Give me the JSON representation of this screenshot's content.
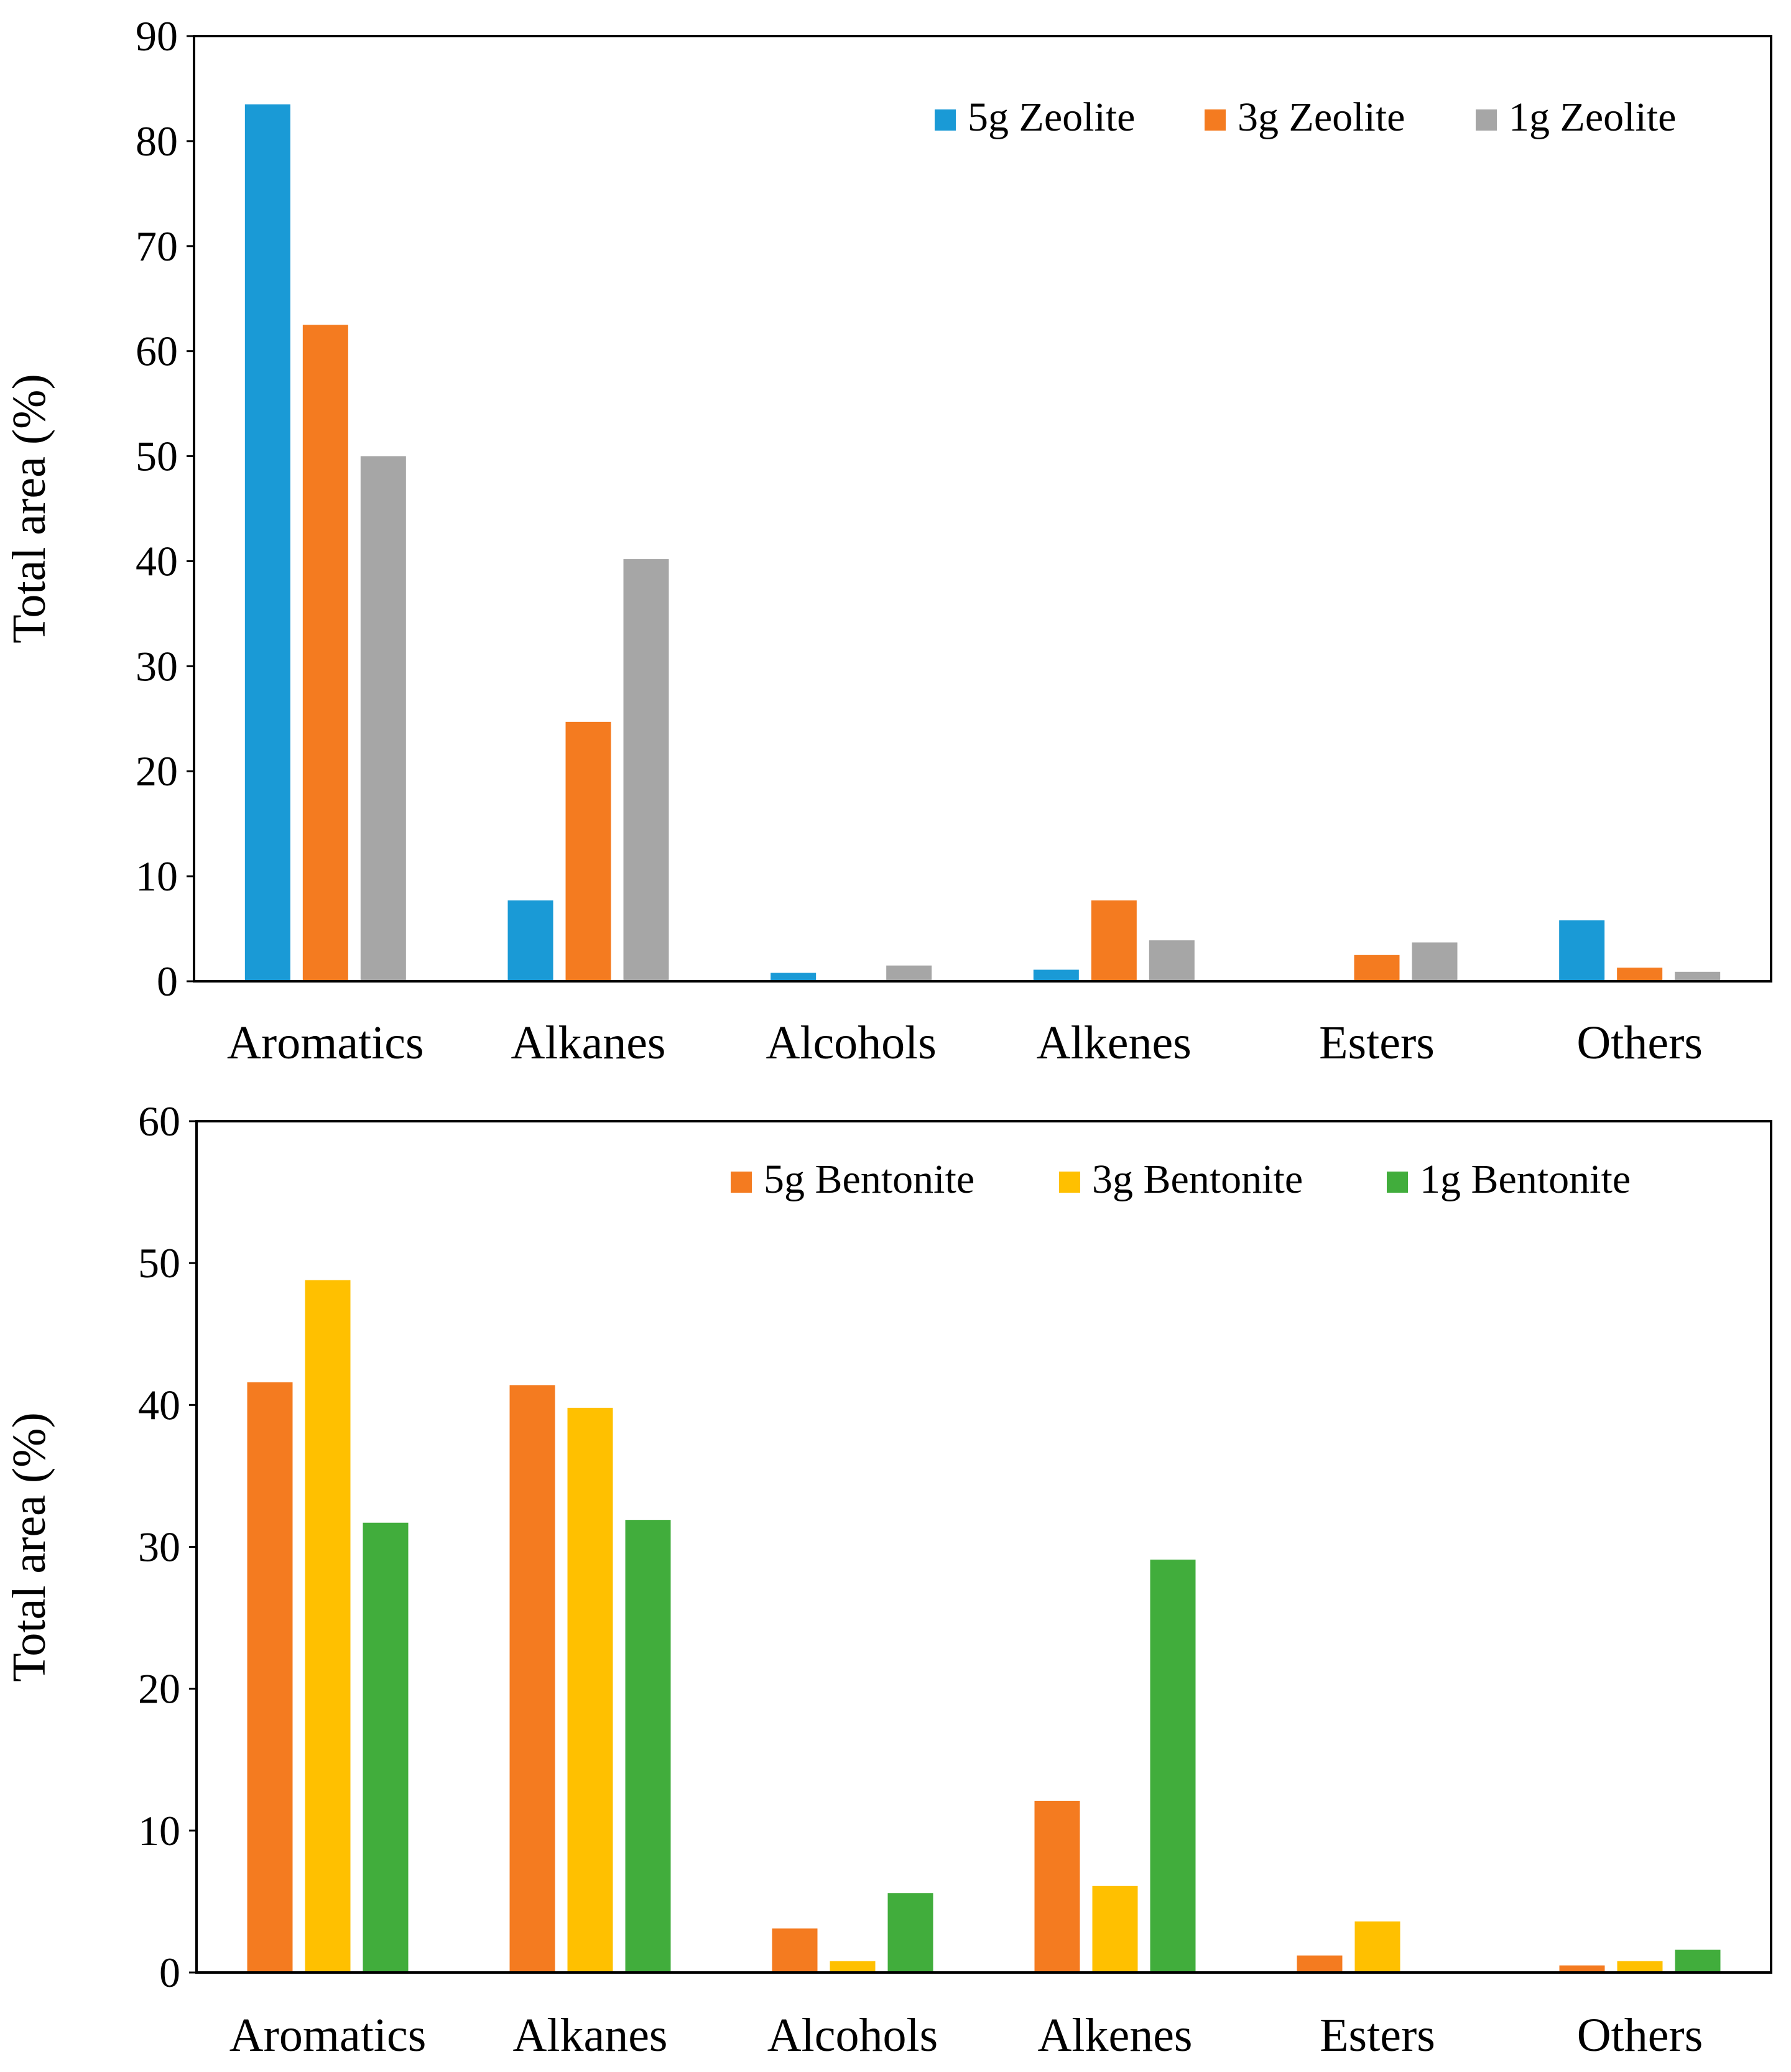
{
  "chart_data": [
    {
      "type": "bar",
      "title": "",
      "xlabel": "",
      "ylabel": "Total area (%)",
      "ylim": [
        0,
        90
      ],
      "yticks": [
        0,
        10,
        20,
        30,
        40,
        50,
        60,
        70,
        80,
        90
      ],
      "categories": [
        "Aromatics",
        "Alkanes",
        "Alcohols",
        "Alkenes",
        "Esters",
        "Others"
      ],
      "legend_position": "top-right",
      "grid": false,
      "series": [
        {
          "name": "5g Zeolite",
          "color": "#1a9ad6",
          "values": [
            83.5,
            7.7,
            0.8,
            1.1,
            0,
            5.8
          ]
        },
        {
          "name": "3g Zeolite",
          "color": "#f47b20",
          "values": [
            62.5,
            24.7,
            0,
            7.7,
            2.5,
            1.3
          ]
        },
        {
          "name": "1g Zeolite",
          "color": "#a6a6a6",
          "values": [
            50.0,
            40.2,
            1.5,
            3.9,
            3.7,
            0.9
          ]
        }
      ]
    },
    {
      "type": "bar",
      "title": "",
      "xlabel": "",
      "ylabel": "Total area (%)",
      "ylim": [
        0,
        60
      ],
      "yticks": [
        0,
        10,
        20,
        30,
        40,
        50,
        60
      ],
      "categories": [
        "Aromatics",
        "Alkanes",
        "Alcohols",
        "Alkenes",
        "Esters",
        "Others"
      ],
      "legend_position": "top-right",
      "grid": false,
      "series": [
        {
          "name": "5g Bentonite",
          "color": "#f47b20",
          "values": [
            41.6,
            41.4,
            3.1,
            12.1,
            1.2,
            0.5
          ]
        },
        {
          "name": "3g Bentonite",
          "color": "#ffc000",
          "values": [
            48.8,
            39.8,
            0.8,
            6.1,
            3.6,
            0.8
          ]
        },
        {
          "name": "1g Bentonite",
          "color": "#41ad3c",
          "values": [
            31.7,
            31.9,
            5.6,
            29.1,
            0,
            1.6
          ]
        }
      ]
    }
  ]
}
